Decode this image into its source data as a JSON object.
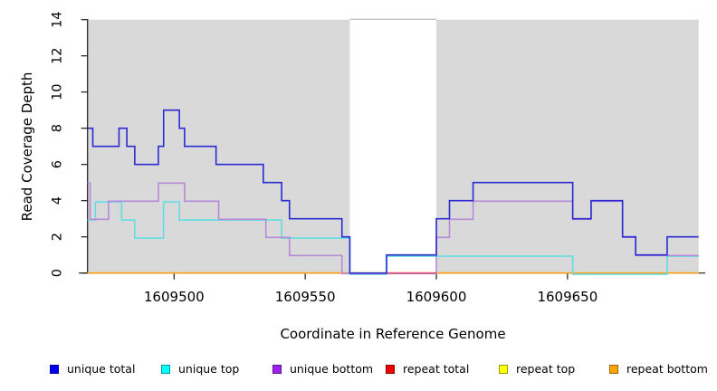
{
  "chart_data": {
    "type": "line",
    "subtype": "step",
    "title": "",
    "xlabel": "Coordinate in Reference Genome",
    "ylabel": "Read Coverage Depth",
    "xlim": [
      1609467,
      1609700
    ],
    "ylim": [
      0,
      14
    ],
    "x_ticks": [
      1609500,
      1609550,
      1609600,
      1609650
    ],
    "y_ticks": [
      0,
      2,
      4,
      6,
      8,
      10,
      12,
      14
    ],
    "grid": false,
    "legend_position": "bottom",
    "plot_background": "#d9d9d9",
    "shaded_regions": [
      [
        1609467,
        1609567
      ],
      [
        1609600,
        1609700
      ]
    ],
    "gap_region": [
      1609567,
      1609600
    ],
    "repeat_total_visible_zero_segment": [
      1609581,
      1609600
    ],
    "series": [
      {
        "name": "unique total",
        "legend_color": "#0000ee",
        "line_color": "#2a2ad2",
        "x": [
          1609467,
          1609469,
          1609479,
          1609482,
          1609485,
          1609494,
          1609496,
          1609502,
          1609504,
          1609516,
          1609534,
          1609541,
          1609544,
          1609564,
          1609567,
          1609581,
          1609600,
          1609605,
          1609614,
          1609652,
          1609659,
          1609671,
          1609676,
          1609688
        ],
        "y": [
          8,
          7,
          8,
          7,
          6,
          7,
          9,
          8,
          7,
          6,
          5,
          4,
          3,
          2,
          0,
          1,
          3,
          4,
          5,
          3,
          4,
          2,
          1,
          2
        ]
      },
      {
        "name": "unique top",
        "legend_color": "#00ffff",
        "line_color": "#62dde4",
        "x": [
          1609467,
          1609470,
          1609480,
          1609485,
          1609496,
          1609502,
          1609541,
          1609567,
          1609581,
          1609652,
          1609688
        ],
        "y": [
          3,
          4,
          3,
          2,
          4,
          3,
          2,
          0,
          1,
          0,
          1
        ]
      },
      {
        "name": "unique bottom",
        "legend_color": "#a020f0",
        "line_color": "#b68ad8",
        "x": [
          1609467,
          1609468,
          1609475,
          1609494,
          1609504,
          1609517,
          1609535,
          1609544,
          1609564,
          1609600,
          1609605,
          1609614,
          1609652,
          1609659,
          1609671,
          1609676
        ],
        "y": [
          5,
          3,
          4,
          5,
          4,
          3,
          2,
          1,
          0,
          2,
          3,
          4,
          3,
          4,
          2,
          1
        ]
      },
      {
        "name": "repeat total",
        "legend_color": "#ee0000",
        "line_color": "#d9547e",
        "x": [
          1609467
        ],
        "y": [
          0
        ]
      },
      {
        "name": "repeat top",
        "legend_color": "#ffff00",
        "line_color": "#ffd700",
        "x": [
          1609467
        ],
        "y": [
          0
        ]
      },
      {
        "name": "repeat bottom",
        "legend_color": "#ffa500",
        "line_color": "#ff9d1c",
        "x": [
          1609467
        ],
        "y": [
          0
        ]
      }
    ]
  }
}
